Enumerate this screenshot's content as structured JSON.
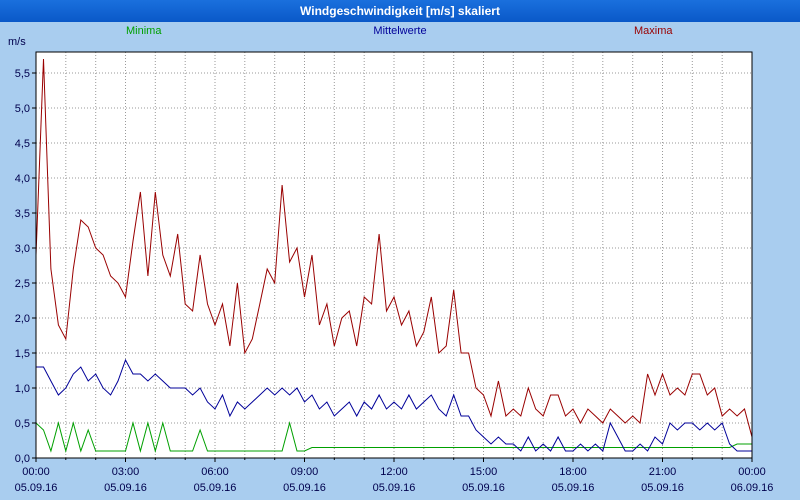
{
  "title_bar": {
    "title": "Windgeschwindigkeit [m/s] skaliert"
  },
  "legend": [
    {
      "label": "Minima",
      "color": "#00a000"
    },
    {
      "label": "Mittelwerte",
      "color": "#000099"
    },
    {
      "label": "Maxima",
      "color": "#990000"
    }
  ],
  "ylabel": "m/s",
  "chart_data": {
    "type": "line",
    "title": "Windgeschwindigkeit [m/s] skaliert",
    "xlabel": "",
    "ylabel": "m/s",
    "ylim": [
      0,
      5.8
    ],
    "ytick_step": 0.5,
    "grid": "dotted",
    "legend_position": "top",
    "ytick_labels": [
      "0,0",
      "0,5",
      "1,0",
      "1,5",
      "2,0",
      "2,5",
      "3,0",
      "3,5",
      "4,0",
      "4,5",
      "5,0",
      "5,5"
    ],
    "x_range_hours": [
      0,
      24
    ],
    "x_sample_interval_minutes": 15,
    "xtick_labels": [
      {
        "time": "00:00",
        "date": "05.09.16"
      },
      {
        "time": "03:00",
        "date": "05.09.16"
      },
      {
        "time": "06:00",
        "date": "05.09.16"
      },
      {
        "time": "09:00",
        "date": "05.09.16"
      },
      {
        "time": "12:00",
        "date": "05.09.16"
      },
      {
        "time": "15:00",
        "date": "05.09.16"
      },
      {
        "time": "18:00",
        "date": "05.09.16"
      },
      {
        "time": "21:00",
        "date": "05.09.16"
      },
      {
        "time": "00:00",
        "date": "06.09.16"
      }
    ],
    "series": [
      {
        "name": "Minima",
        "color": "#00a000",
        "values": [
          0.5,
          0.4,
          0.1,
          0.5,
          0.1,
          0.5,
          0.1,
          0.4,
          0.1,
          0.1,
          0.1,
          0.1,
          0.1,
          0.5,
          0.1,
          0.5,
          0.1,
          0.5,
          0.1,
          0.1,
          0.1,
          0.1,
          0.4,
          0.1,
          0.1,
          0.1,
          0.1,
          0.1,
          0.1,
          0.1,
          0.1,
          0.1,
          0.1,
          0.1,
          0.5,
          0.1,
          0.1,
          0.15,
          0.15,
          0.15,
          0.15,
          0.15,
          0.15,
          0.15,
          0.15,
          0.15,
          0.15,
          0.15,
          0.15,
          0.15,
          0.15,
          0.15,
          0.15,
          0.15,
          0.15,
          0.15,
          0.15,
          0.15,
          0.15,
          0.15,
          0.15,
          0.15,
          0.15,
          0.15,
          0.15,
          0.15,
          0.15,
          0.15,
          0.15,
          0.15,
          0.15,
          0.15,
          0.15,
          0.15,
          0.15,
          0.15,
          0.15,
          0.15,
          0.15,
          0.15,
          0.15,
          0.15,
          0.15,
          0.15,
          0.15,
          0.15,
          0.15,
          0.15,
          0.15,
          0.15,
          0.15,
          0.15,
          0.15,
          0.15,
          0.2,
          0.2,
          0.2
        ]
      },
      {
        "name": "Mittelwerte",
        "color": "#000099",
        "values": [
          1.3,
          1.3,
          1.1,
          0.9,
          1.0,
          1.2,
          1.3,
          1.1,
          1.2,
          1.0,
          0.9,
          1.1,
          1.4,
          1.2,
          1.2,
          1.1,
          1.2,
          1.1,
          1.0,
          1.0,
          1.0,
          0.9,
          1.0,
          0.8,
          0.7,
          0.9,
          0.6,
          0.8,
          0.7,
          0.8,
          0.9,
          1.0,
          0.9,
          1.0,
          0.9,
          1.0,
          0.8,
          0.9,
          0.7,
          0.8,
          0.6,
          0.7,
          0.8,
          0.6,
          0.8,
          0.7,
          0.9,
          0.7,
          0.8,
          0.7,
          0.9,
          0.7,
          0.8,
          0.9,
          0.7,
          0.6,
          0.9,
          0.6,
          0.6,
          0.4,
          0.3,
          0.2,
          0.3,
          0.2,
          0.2,
          0.1,
          0.3,
          0.1,
          0.2,
          0.1,
          0.3,
          0.1,
          0.1,
          0.2,
          0.1,
          0.2,
          0.1,
          0.5,
          0.3,
          0.1,
          0.1,
          0.2,
          0.1,
          0.3,
          0.2,
          0.5,
          0.4,
          0.5,
          0.5,
          0.4,
          0.5,
          0.4,
          0.5,
          0.2,
          0.1,
          0.1,
          0.1
        ]
      },
      {
        "name": "Maxima",
        "color": "#990000",
        "values": [
          2.9,
          5.7,
          2.7,
          1.9,
          1.7,
          2.7,
          3.4,
          3.3,
          3.0,
          2.9,
          2.6,
          2.5,
          2.3,
          3.1,
          3.8,
          2.6,
          3.8,
          2.9,
          2.6,
          3.2,
          2.2,
          2.1,
          2.9,
          2.2,
          1.9,
          2.2,
          1.6,
          2.5,
          1.5,
          1.7,
          2.2,
          2.7,
          2.5,
          3.9,
          2.8,
          3.0,
          2.3,
          2.9,
          1.9,
          2.2,
          1.6,
          2.0,
          2.1,
          1.6,
          2.3,
          2.2,
          3.2,
          2.1,
          2.3,
          1.9,
          2.1,
          1.6,
          1.8,
          2.3,
          1.5,
          1.6,
          2.4,
          1.5,
          1.5,
          1.0,
          0.9,
          0.6,
          1.1,
          0.6,
          0.7,
          0.6,
          1.0,
          0.7,
          0.6,
          0.9,
          0.9,
          0.6,
          0.7,
          0.5,
          0.7,
          0.6,
          0.5,
          0.7,
          0.6,
          0.5,
          0.6,
          0.5,
          1.2,
          0.9,
          1.2,
          0.9,
          1.0,
          0.9,
          1.2,
          1.2,
          0.9,
          1.0,
          0.6,
          0.7,
          0.6,
          0.7,
          0.3
        ]
      }
    ]
  }
}
